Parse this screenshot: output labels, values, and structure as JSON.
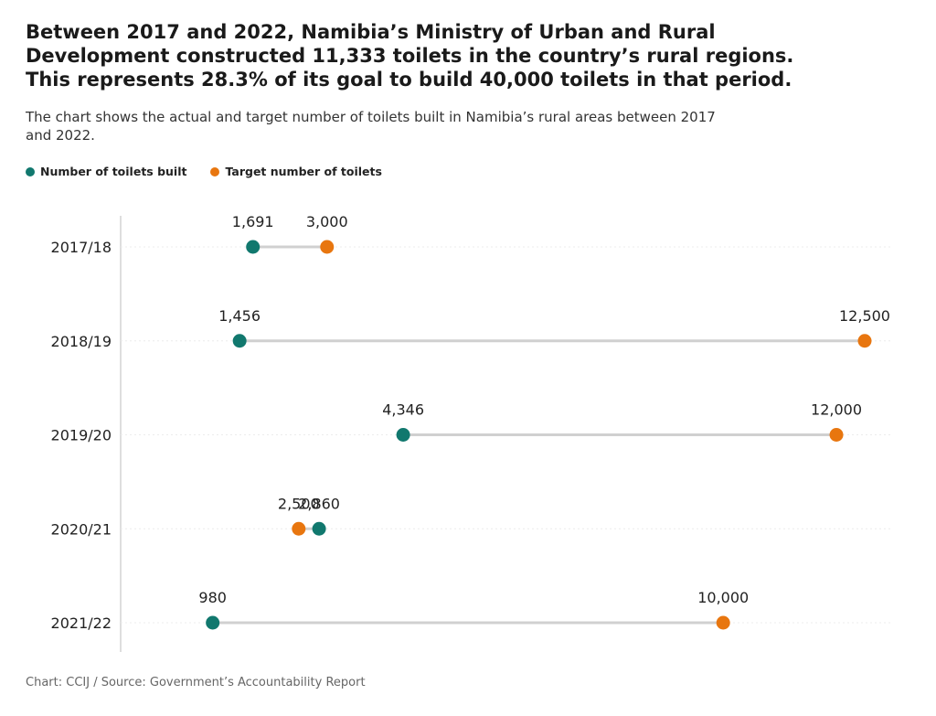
{
  "title_lines": [
    "Between 2017 and 2022, Namibia’s Ministry of Urban and Rural",
    "Development constructed 11,333 toilets in the country’s rural regions.",
    "This represents 28.3% of its goal to build 40,000 toilets in that period."
  ],
  "subtitle": "The chart shows the actual and target number of toilets built in Namibia’s rural areas between 2017 and 2022.",
  "legend": {
    "built": "Number of toilets built",
    "target": "Target number of toilets"
  },
  "footer": "Chart: CCIJ / Source: Government’s Accountability Report",
  "colors": {
    "built": "#11786e",
    "target": "#e8760f",
    "connector": "#d0d0d0",
    "axis": "#bdbdbd",
    "grid": "#ececec"
  },
  "chart_data": {
    "type": "dot-range",
    "categories": [
      "2017/18",
      "2018/19",
      "2019/20",
      "2020/21",
      "2021/22"
    ],
    "series": [
      {
        "name": "Number of toilets built",
        "values": [
          1691,
          1456,
          4346,
          2860,
          980
        ],
        "labels": [
          "1,691",
          "1,456",
          "4,346",
          "2,860",
          "980"
        ]
      },
      {
        "name": "Target number of toilets",
        "values": [
          3000,
          12500,
          12000,
          2500,
          10000
        ],
        "labels": [
          "3,000",
          "12,500",
          "12,000",
          "2,500",
          "10,000"
        ]
      }
    ],
    "xlim": [
      0,
      13000
    ],
    "grid": true,
    "legend_position": "top-left"
  }
}
